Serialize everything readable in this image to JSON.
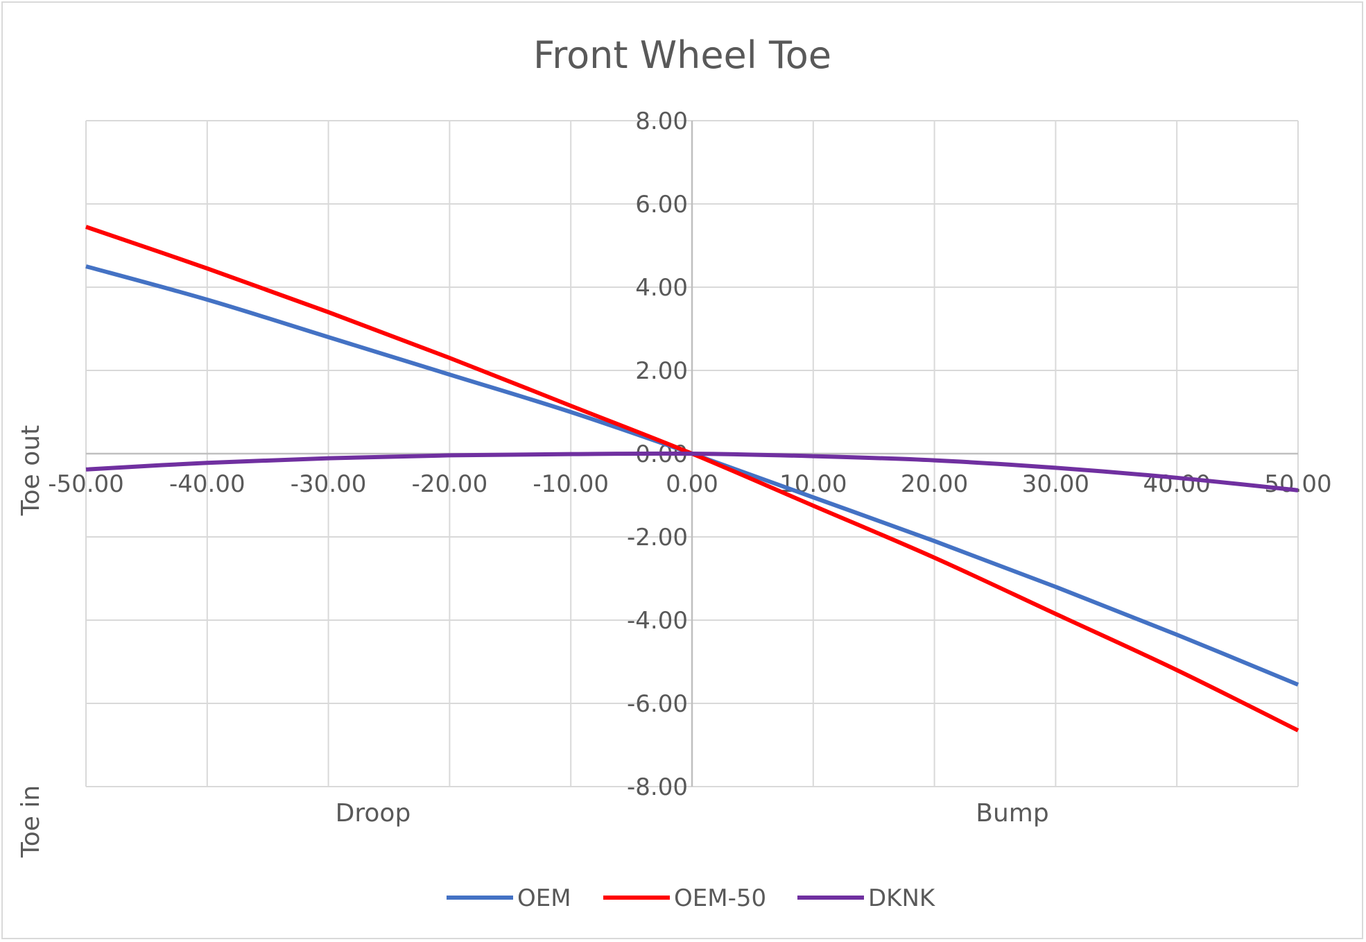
{
  "chart_data": {
    "type": "line",
    "title": "Front Wheel Toe",
    "xlabel": "",
    "ylabel": "",
    "xlim": [
      -50,
      50
    ],
    "ylim": [
      -8,
      8
    ],
    "x_ticks": [
      "-50.00",
      "-40.00",
      "-30.00",
      "-20.00",
      "-10.00",
      "0.00",
      "10.00",
      "20.00",
      "30.00",
      "40.00",
      "50.00"
    ],
    "y_ticks": [
      "8.00",
      "6.00",
      "4.00",
      "2.00",
      "0.00",
      "-2.00",
      "-4.00",
      "-6.00",
      "-8.00"
    ],
    "grid": true,
    "legend_position": "bottom",
    "annotations": {
      "droop": "Droop",
      "bump": "Bump",
      "toe_out": "Toe out",
      "toe_in": "Toe in"
    },
    "series": [
      {
        "name": "OEM",
        "color": "#4472c4",
        "x": [
          -50,
          -40,
          -30,
          -20,
          -10,
          0,
          10,
          20,
          30,
          40,
          50
        ],
        "y": [
          4.5,
          3.7,
          2.8,
          1.9,
          1.0,
          0.0,
          -1.05,
          -2.1,
          -3.2,
          -4.35,
          -5.55
        ]
      },
      {
        "name": "OEM-50",
        "color": "#ff0000",
        "x": [
          -50,
          -40,
          -30,
          -20,
          -10,
          0,
          10,
          20,
          30,
          40,
          50
        ],
        "y": [
          5.45,
          4.45,
          3.4,
          2.3,
          1.15,
          0.0,
          -1.25,
          -2.5,
          -3.85,
          -5.2,
          -6.65
        ]
      },
      {
        "name": "DKNK",
        "color": "#7030a0",
        "x": [
          -50,
          -40,
          -30,
          -20,
          -10,
          0,
          10,
          20,
          30,
          40,
          50
        ],
        "y": [
          -0.38,
          -0.22,
          -0.11,
          -0.04,
          -0.01,
          0.0,
          -0.06,
          -0.16,
          -0.34,
          -0.58,
          -0.88
        ]
      }
    ]
  }
}
